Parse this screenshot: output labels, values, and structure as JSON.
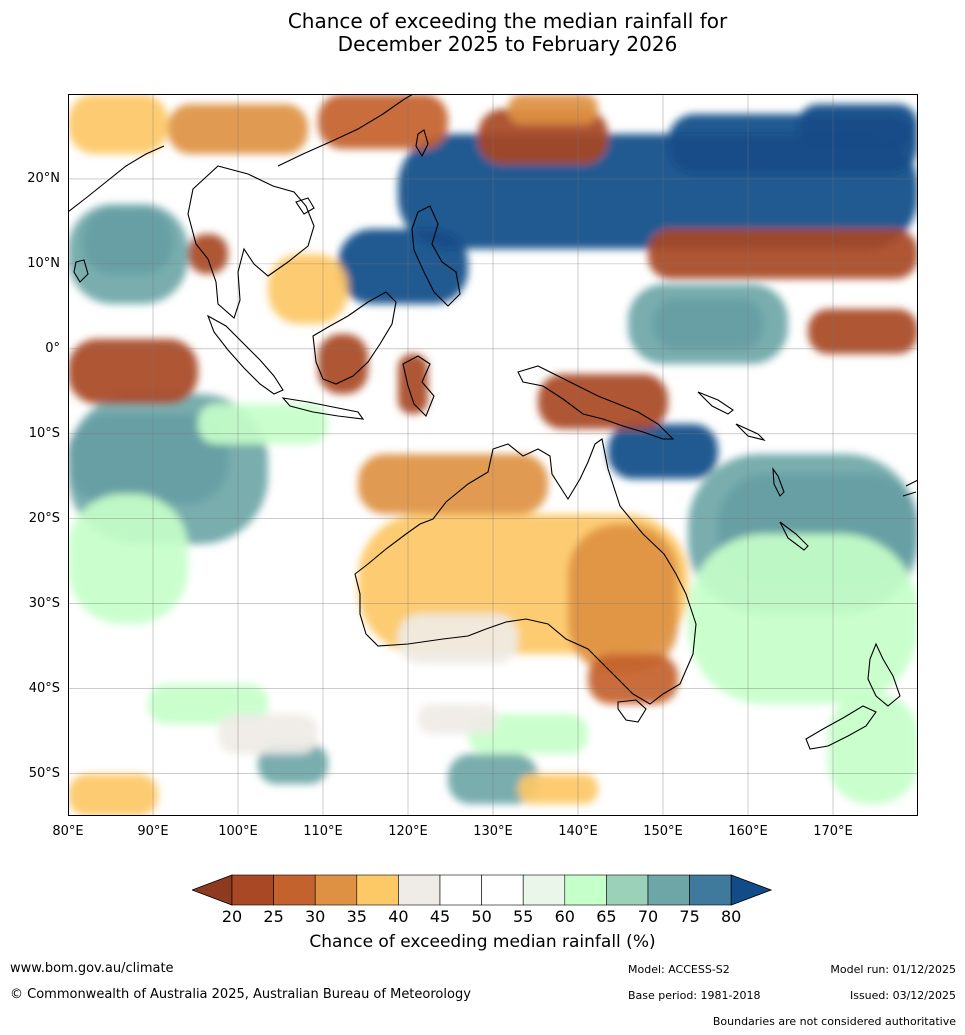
{
  "title": {
    "line1": "Chance of exceeding the median rainfall for",
    "line2": "December 2025 to February 2026"
  },
  "map": {
    "lon_range": [
      80,
      180
    ],
    "lat_range": [
      -55,
      30
    ],
    "lat_labels": [
      "20°N",
      "10°N",
      "0°",
      "10°S",
      "20°S",
      "30°S",
      "40°S",
      "50°S"
    ],
    "lat_values": [
      20,
      10,
      0,
      -10,
      -20,
      -30,
      -40,
      -50
    ],
    "lon_labels": [
      "80°E",
      "90°E",
      "100°E",
      "110°E",
      "120°E",
      "130°E",
      "140°E",
      "150°E",
      "160°E",
      "170°E"
    ],
    "lon_values": [
      80,
      90,
      100,
      110,
      120,
      130,
      140,
      150,
      160,
      170
    ]
  },
  "colorbar": {
    "ticks": [
      "20",
      "25",
      "30",
      "35",
      "40",
      "45",
      "50",
      "55",
      "60",
      "65",
      "70",
      "75",
      "80"
    ],
    "colors": [
      "#8e3a1f",
      "#a84825",
      "#c4622e",
      "#de9142",
      "#fdc866",
      "#efebe6",
      "#ffffff",
      "#ffffff",
      "#e9f6e9",
      "#c5ffc9",
      "#9bd1b8",
      "#6ea6a7",
      "#3f7a9c",
      "#124c88"
    ],
    "label": "Chance of exceeding median rainfall (%)"
  },
  "footer": {
    "website": "www.bom.gov.au/climate",
    "copyright": "© Commonwealth of Australia 2025, Australian Bureau of Meteorology",
    "model": "Model: ACCESS-S2",
    "base_period": "Base period: 1981-2018",
    "model_run": "Model run: 01/12/2025",
    "issued": "Issued: 03/12/2025",
    "disclaimer": "Boundaries are not considered authoritative"
  }
}
